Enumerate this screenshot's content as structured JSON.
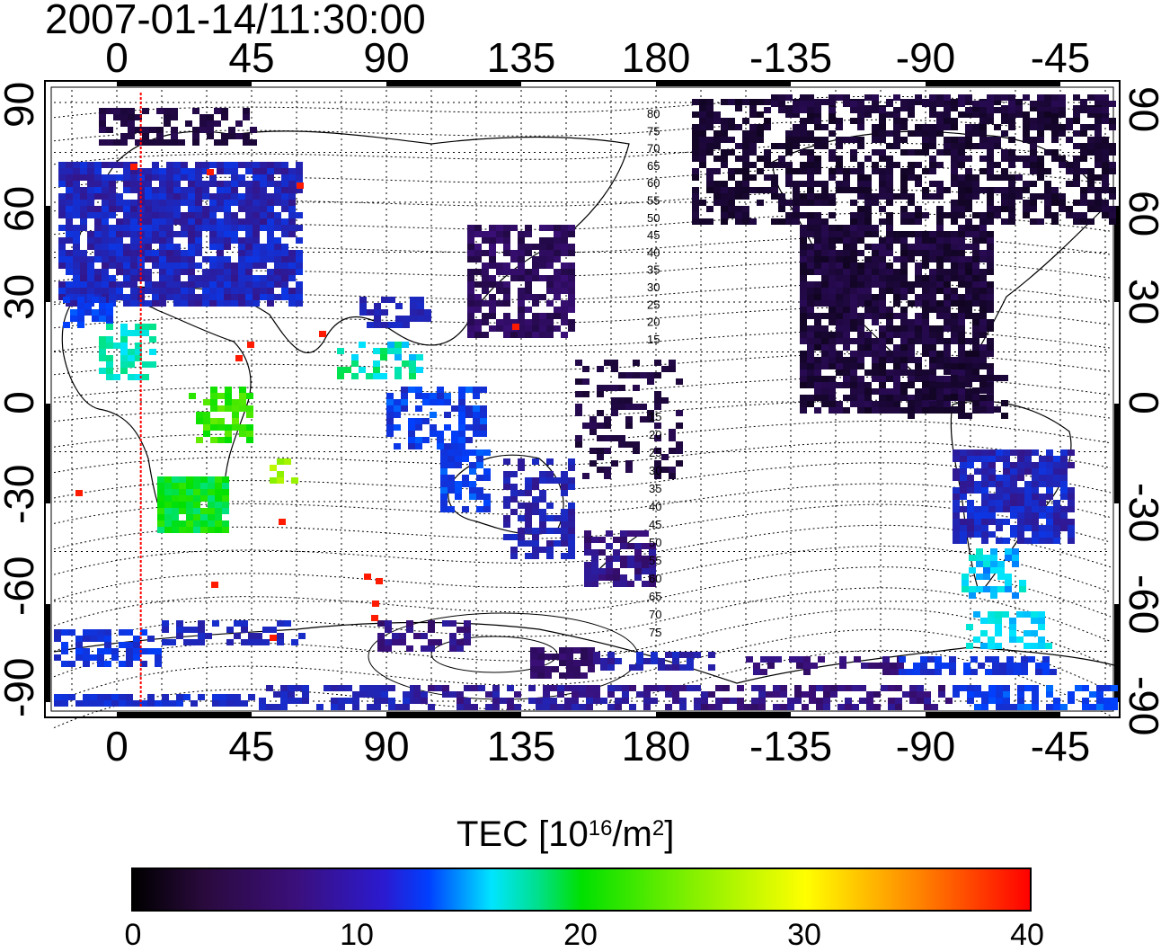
{
  "title": "2007-01-14/11:30:00",
  "lon_ticks": [
    "0",
    "45",
    "90",
    "135",
    "180",
    "-135",
    "-90",
    "-45"
  ],
  "lat_ticks": [
    "90",
    "60",
    "30",
    "0",
    "-30",
    "-60",
    "-90"
  ],
  "contour_labels_north": [
    "80",
    "75",
    "70",
    "65",
    "60",
    "55",
    "50",
    "45",
    "40",
    "35",
    "30",
    "25",
    "20",
    "15"
  ],
  "contour_labels_south": [
    "15",
    "20",
    "25",
    "30",
    "35",
    "40",
    "45",
    "50",
    "55",
    "60",
    "65",
    "70",
    "75"
  ],
  "colorbar": {
    "title_prefix": "TEC  [10",
    "title_exp": "16",
    "title_mid": "/m",
    "title_exp2": "2",
    "title_suffix": "]",
    "ticks": [
      "0",
      "10",
      "20",
      "30",
      "40"
    ],
    "min": 0,
    "max": 40,
    "colors": [
      "#000000",
      "#3b0f7a",
      "#0040ff",
      "#00e5ff",
      "#00e000",
      "#ffff00",
      "#ff0000"
    ]
  },
  "map": {
    "lon_range_deg": [
      -22,
      337
    ],
    "lat_range_deg": [
      -94,
      95
    ],
    "terminator_longitude": 8,
    "terminator_color": "#ff0000",
    "grid": "dotted"
  }
}
